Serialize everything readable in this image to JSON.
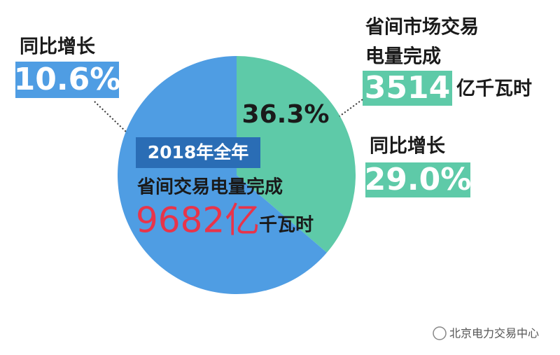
{
  "chart_data": {
    "type": "pie",
    "values": [
      36.3,
      63.7
    ],
    "value_labels": [
      "36.3%",
      null
    ],
    "colors": [
      "#5ecaa8",
      "#4f9de3"
    ],
    "center_note": {
      "badge": "2018年全年",
      "line": "省间交易电量完成",
      "amount": "9682亿",
      "unit": "千瓦时"
    },
    "right_note": {
      "line1": "省间市场交易",
      "line2": "电量完成",
      "amount": "3514",
      "unit": "亿千瓦时",
      "growth_label": "同比增长",
      "growth": "29.0%"
    },
    "left_note": {
      "growth_label": "同比增长",
      "growth": "10.6%"
    }
  },
  "watermark": "北京电力交易中心"
}
